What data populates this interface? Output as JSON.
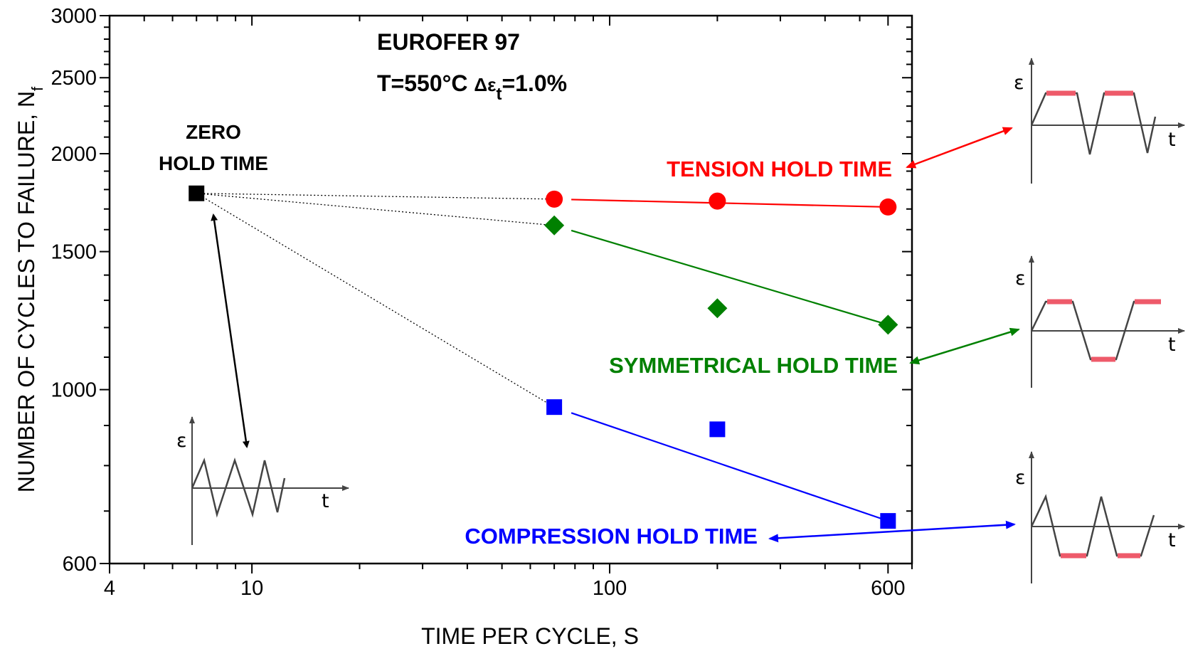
{
  "chart_data": {
    "type": "scatter",
    "x_scale": "log",
    "y_scale": "log",
    "xlim": [
      4,
      700
    ],
    "ylim": [
      600,
      3000
    ],
    "x_ticks": [
      "4",
      "10",
      "100",
      "600"
    ],
    "y_ticks": [
      "600",
      "1000",
      "1500",
      "2000",
      "2500",
      "3000"
    ],
    "x_tick_values": [
      4,
      10,
      100,
      600
    ],
    "y_tick_values": [
      600,
      1000,
      1500,
      2000,
      2500,
      3000
    ],
    "xlabel": "TIME PER CYCLE, S",
    "ylabel": "NUMBER OF CYCLES TO FAILURE, N",
    "ylabel_subscript": "f",
    "title_line1": "EUROFER 97",
    "title_line2_prefix": "T=550°C ",
    "title_line2_delta": "Δε",
    "title_line2_sub": "t",
    "title_line2_suffix": "=1.0%",
    "zero_hold": {
      "label_line1": "ZERO",
      "label_line2": "HOLD TIME",
      "x": 7,
      "y": 1780,
      "color": "#000000",
      "marker": "square"
    },
    "series": [
      {
        "name": "TENSION HOLD TIME",
        "color": "#ff0000",
        "marker": "circle",
        "x": [
          70,
          200,
          600
        ],
        "y": [
          1750,
          1740,
          1710
        ]
      },
      {
        "name": "SYMMETRICAL HOLD TIME",
        "color": "#008000",
        "marker": "diamond",
        "x": [
          70,
          200,
          600
        ],
        "y": [
          1620,
          1270,
          1210
        ]
      },
      {
        "name": "COMPRESSION HOLD TIME",
        "color": "#0000ff",
        "marker": "square",
        "x": [
          70,
          200,
          600
        ],
        "y": [
          950,
          890,
          680
        ]
      }
    ],
    "insets": {
      "strain_symbol": "ε",
      "time_symbol": "t",
      "hold_color": "#ee5a6a"
    }
  }
}
